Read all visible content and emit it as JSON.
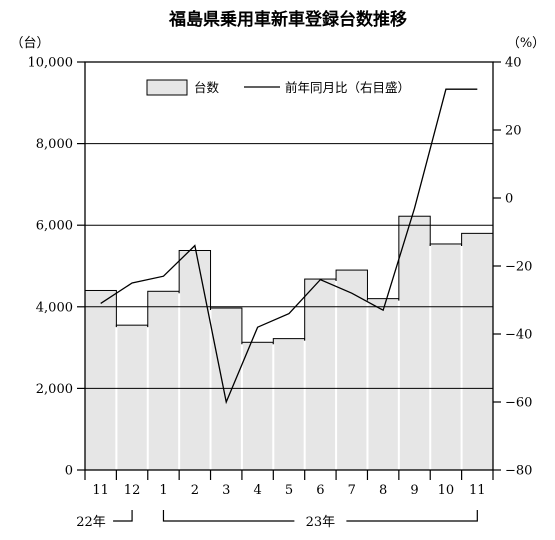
{
  "chart_data": {
    "type": "bar+line",
    "title": "福島県乗用車新車登録台数推移",
    "left_unit": "（台）",
    "right_unit": "（%）",
    "categories": [
      "11",
      "12",
      "1",
      "2",
      "3",
      "4",
      "5",
      "6",
      "7",
      "8",
      "9",
      "10",
      "11"
    ],
    "year_groups": [
      {
        "label": "22年",
        "from": 0,
        "to": 1
      },
      {
        "label": "23年",
        "from": 2,
        "to": 12
      }
    ],
    "left_axis": {
      "ylim": [
        0,
        10000
      ],
      "ticks": [
        0,
        2000,
        4000,
        6000,
        8000,
        10000
      ],
      "tick_labels": [
        "0",
        "2,000",
        "4,000",
        "6,000",
        "8,000",
        "10,000"
      ]
    },
    "right_axis": {
      "ylim": [
        -80,
        40
      ],
      "ticks": [
        -80,
        -60,
        -40,
        -20,
        0,
        20,
        40
      ],
      "tick_labels": [
        "−80",
        "−60",
        "−40",
        "−20",
        "0",
        "20",
        "40"
      ]
    },
    "gridlines_at": [
      2000,
      4000,
      6000,
      8000
    ],
    "series": [
      {
        "name": "台数",
        "type": "bar",
        "axis": "left",
        "color": "#e6e6e6",
        "values": [
          4400,
          3550,
          4380,
          5380,
          3970,
          3130,
          3220,
          4680,
          4900,
          4200,
          6220,
          5540,
          5800
        ]
      },
      {
        "name": "前年同月比（右目盛）",
        "type": "line",
        "axis": "right",
        "color": "#000000",
        "values": [
          -31,
          -25,
          -23,
          -14,
          -60,
          -38,
          -34,
          -24,
          -28,
          -33,
          -3,
          32,
          32
        ]
      }
    ],
    "legend_position": "top-center"
  }
}
